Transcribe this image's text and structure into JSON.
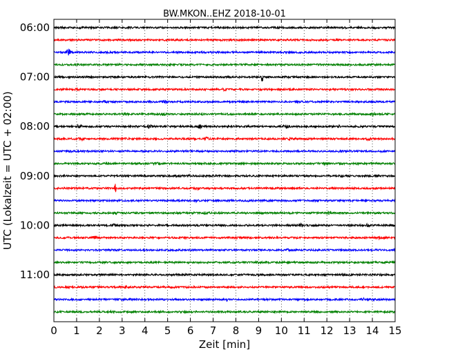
{
  "chart_data": {
    "type": "line",
    "title": "BW.MKON..EHZ 2018-10-01",
    "xlabel": "Zeit  [min]",
    "ylabel": "UTC (Lokalzeit = UTC + 02:00)",
    "xlim": [
      0,
      15
    ],
    "xticks": [
      0,
      1,
      2,
      3,
      4,
      5,
      6,
      7,
      8,
      9,
      10,
      11,
      12,
      13,
      14,
      15
    ],
    "yticks": [
      "06:00",
      "07:00",
      "08:00",
      "09:00",
      "10:00",
      "11:00"
    ],
    "grid": "vertical dotted at each minute",
    "line_interval_minutes": 15,
    "colors": [
      "#000000",
      "#ff0000",
      "#0000ff",
      "#008000"
    ],
    "traces": [
      {
        "start": "06:00",
        "color": "#000000",
        "events": [
          {
            "x": 0.2,
            "amp": 0.4
          },
          {
            "x": 14.1,
            "amp": 0.3
          }
        ]
      },
      {
        "start": "06:15",
        "color": "#ff0000",
        "events": []
      },
      {
        "start": "06:30",
        "color": "#0000ff",
        "events": [
          {
            "x": 0.65,
            "amp": 1.4
          }
        ]
      },
      {
        "start": "06:45",
        "color": "#008000",
        "events": []
      },
      {
        "start": "07:00",
        "color": "#000000",
        "events": [
          {
            "x": 9.15,
            "amp": 4.5
          }
        ]
      },
      {
        "start": "07:15",
        "color": "#ff0000",
        "events": [
          {
            "x": 1.0,
            "amp": 0.5
          },
          {
            "x": 7.5,
            "amp": 0.4
          }
        ]
      },
      {
        "start": "07:30",
        "color": "#0000ff",
        "events": [
          {
            "x": 2.3,
            "amp": 0.4
          },
          {
            "x": 4.9,
            "amp": 0.6
          }
        ]
      },
      {
        "start": "07:45",
        "color": "#008000",
        "events": [
          {
            "x": 3.1,
            "amp": 0.4
          },
          {
            "x": 4.8,
            "amp": 0.4
          },
          {
            "x": 6.5,
            "amp": 0.3
          },
          {
            "x": 14.0,
            "amp": 0.6
          }
        ]
      },
      {
        "start": "08:00",
        "color": "#000000",
        "events": [
          {
            "x": 1.1,
            "amp": 0.6
          },
          {
            "x": 4.2,
            "amp": 0.7
          },
          {
            "x": 6.4,
            "amp": 0.8
          },
          {
            "x": 10.2,
            "amp": 0.8
          },
          {
            "x": 12.6,
            "amp": 0.6
          }
        ]
      },
      {
        "start": "08:15",
        "color": "#ff0000",
        "events": [
          {
            "x": 1.2,
            "amp": 0.6
          },
          {
            "x": 3.0,
            "amp": 0.6
          },
          {
            "x": 6.7,
            "amp": 0.7
          },
          {
            "x": 10.4,
            "amp": 0.4
          },
          {
            "x": 13.8,
            "amp": 0.4
          }
        ]
      },
      {
        "start": "08:30",
        "color": "#0000ff",
        "events": [
          {
            "x": 0.7,
            "amp": 0.4
          },
          {
            "x": 12.6,
            "amp": 0.4
          }
        ]
      },
      {
        "start": "08:45",
        "color": "#008000",
        "events": [
          {
            "x": 4.5,
            "amp": 0.4
          },
          {
            "x": 11.9,
            "amp": 0.4
          },
          {
            "x": 13.3,
            "amp": 0.4
          }
        ]
      },
      {
        "start": "09:00",
        "color": "#000000",
        "events": [
          {
            "x": 5.4,
            "amp": 0.4
          },
          {
            "x": 6.0,
            "amp": 0.4
          },
          {
            "x": 12.6,
            "amp": 0.4
          },
          {
            "x": 14.2,
            "amp": 0.4
          }
        ]
      },
      {
        "start": "09:15",
        "color": "#ff0000",
        "events": [
          {
            "x": 2.7,
            "amp": 3.0
          },
          {
            "x": 6.3,
            "amp": 0.4
          }
        ]
      },
      {
        "start": "09:30",
        "color": "#0000ff",
        "events": [
          {
            "x": 6.3,
            "amp": 0.4
          },
          {
            "x": 8.6,
            "amp": 0.4
          }
        ]
      },
      {
        "start": "09:45",
        "color": "#008000",
        "events": [
          {
            "x": 2.7,
            "amp": 0.4
          },
          {
            "x": 6.7,
            "amp": 0.6
          },
          {
            "x": 12.1,
            "amp": 0.6
          }
        ]
      },
      {
        "start": "10:00",
        "color": "#000000",
        "events": [
          {
            "x": 2.6,
            "amp": 0.5
          },
          {
            "x": 10.8,
            "amp": 1.0
          },
          {
            "x": 13.8,
            "amp": 0.6
          }
        ]
      },
      {
        "start": "10:15",
        "color": "#ff0000",
        "events": [
          {
            "x": 1.8,
            "amp": 0.6
          },
          {
            "x": 8.0,
            "amp": 0.3
          },
          {
            "x": 14.3,
            "amp": 0.4
          }
        ]
      },
      {
        "start": "10:30",
        "color": "#0000ff",
        "events": [
          {
            "x": 10.3,
            "amp": 0.3
          }
        ]
      },
      {
        "start": "10:45",
        "color": "#008000",
        "events": [
          {
            "x": 9.0,
            "amp": 0.3
          }
        ]
      },
      {
        "start": "11:00",
        "color": "#000000",
        "events": [
          {
            "x": 12.7,
            "amp": 0.4
          }
        ]
      },
      {
        "start": "11:15",
        "color": "#ff0000",
        "events": [
          {
            "x": 3.2,
            "amp": 0.5
          },
          {
            "x": 5.2,
            "amp": 0.4
          }
        ]
      },
      {
        "start": "11:30",
        "color": "#0000ff",
        "events": [
          {
            "x": 7.6,
            "amp": 2.2
          },
          {
            "x": 13.6,
            "amp": 0.5
          }
        ]
      },
      {
        "start": "11:45",
        "color": "#008000",
        "events": [
          {
            "x": 2.5,
            "amp": 0.3
          }
        ]
      }
    ]
  }
}
